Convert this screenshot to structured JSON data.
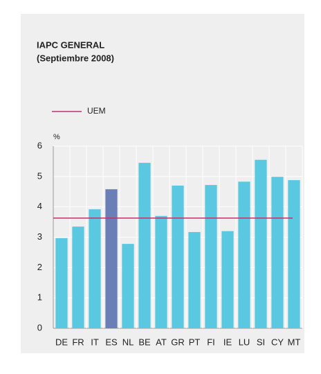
{
  "chart_data": {
    "type": "bar",
    "title": "IAPC GENERAL",
    "subtitle": "(Septiembre 2008)",
    "y_label": "%",
    "categories": [
      "DE",
      "FR",
      "IT",
      "ES",
      "NL",
      "BE",
      "AT",
      "GR",
      "PT",
      "FI",
      "IE",
      "LU",
      "SI",
      "CY",
      "MT"
    ],
    "values": [
      2.97,
      3.35,
      3.92,
      4.58,
      2.78,
      5.45,
      3.7,
      4.7,
      3.17,
      4.72,
      3.2,
      4.83,
      5.55,
      4.99,
      4.88
    ],
    "colors": [
      "#5bc8e2",
      "#5bc8e2",
      "#5bc8e2",
      "#6a7fb6",
      "#5bc8e2",
      "#5bc8e2",
      "#5bc8e2",
      "#5bc8e2",
      "#5bc8e2",
      "#5bc8e2",
      "#5bc8e2",
      "#5bc8e2",
      "#5bc8e2",
      "#5bc8e2",
      "#5bc8e2"
    ],
    "reference_lines": [
      {
        "name": "UEM",
        "value": 3.63,
        "color": "#b8346a"
      }
    ],
    "ylim": [
      0,
      6
    ],
    "yticks": [
      0,
      1,
      2,
      3,
      4,
      5,
      6
    ],
    "grid": true
  }
}
